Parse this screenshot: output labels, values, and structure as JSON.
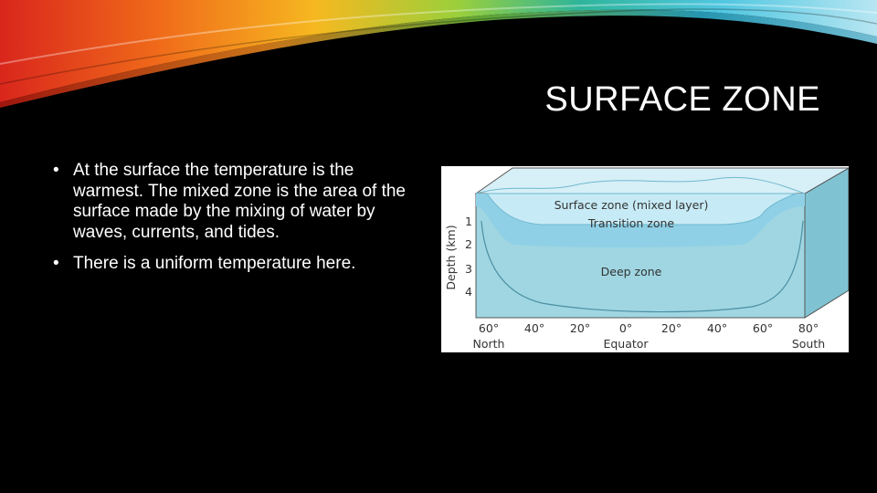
{
  "slide": {
    "title": "SURFACE ZONE",
    "bullets": [
      "At the surface the temperature is the warmest. The mixed zone is the area of the surface made by the mixing of water by waves, currents, and tides.",
      "There is a uniform temperature here."
    ],
    "bullet_glyph": "•"
  },
  "diagram": {
    "zones": {
      "surface": "Surface zone (mixed layer)",
      "transition": "Transition zone",
      "deep": "Deep zone"
    },
    "y_axis_label": "Depth (km)",
    "depth_ticks": [
      "1",
      "2",
      "3",
      "4"
    ],
    "latitude_ticks": [
      "60°",
      "40°",
      "20°",
      "0°",
      "20°",
      "40°",
      "60°",
      "80°"
    ],
    "latitude_labels": {
      "north": "North",
      "equator": "Equator",
      "south": "South"
    }
  },
  "colors": {
    "background": "#000000",
    "text": "#ffffff",
    "surface_zone": "#bfe6f2",
    "transition_zone": "#8fd0e6",
    "deep_zone": "#9fd6e2",
    "box_side": "#7fc3d3"
  }
}
